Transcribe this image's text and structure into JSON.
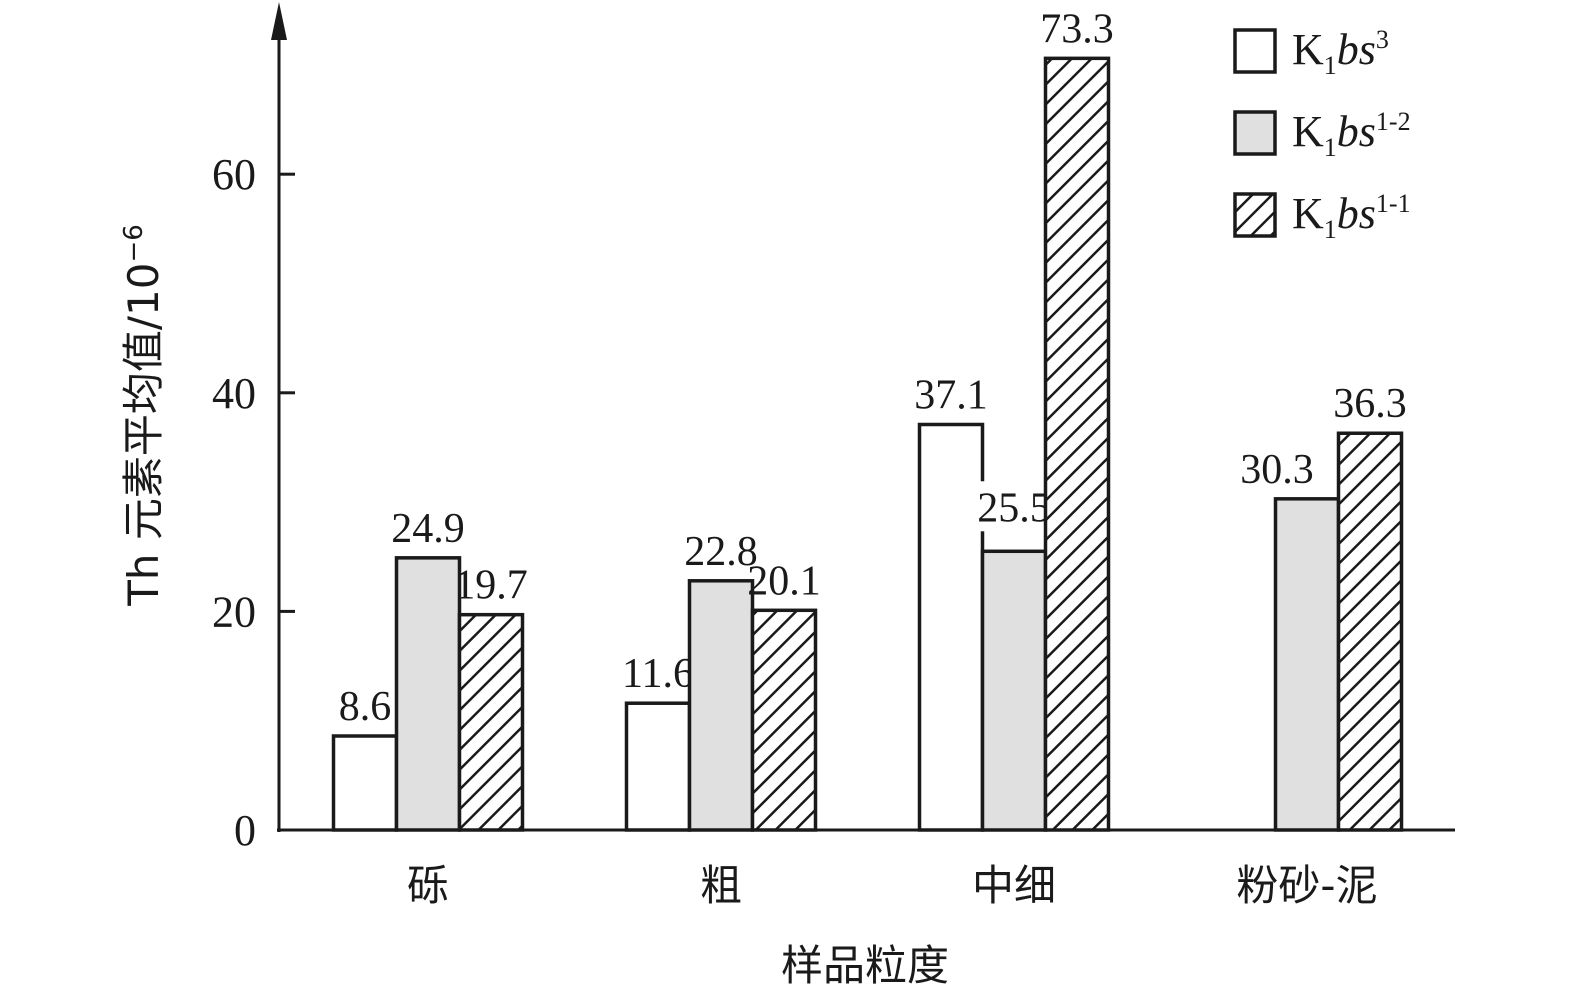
{
  "chart_data": {
    "type": "bar",
    "categories": [
      "砾",
      "粗",
      "中细",
      "粉砂-泥"
    ],
    "series": [
      {
        "legend": {
          "base": "K",
          "sub": "1",
          "ital": "bs",
          "sup": "3"
        },
        "values": [
          8.6,
          11.6,
          37.1,
          null
        ],
        "labels": [
          "8.6",
          "11.6",
          "37.1",
          ""
        ],
        "fill": "#ffffff"
      },
      {
        "legend": {
          "base": "K",
          "sub": "1",
          "ital": "bs",
          "sup": "1-2"
        },
        "values": [
          24.9,
          22.8,
          25.5,
          30.3
        ],
        "labels": [
          "24.9",
          "22.8",
          "25.5",
          "30.3"
        ],
        "fill": "#e0e0e0"
      },
      {
        "legend": {
          "base": "K",
          "sub": "1",
          "ital": "bs",
          "sup": "1-1"
        },
        "values": [
          19.7,
          20.1,
          73.3,
          36.3
        ],
        "labels": [
          "19.7",
          "20.1",
          "73.3",
          "36.3"
        ],
        "fill": "hatch"
      }
    ],
    "yticks": [
      "0",
      "20",
      "40",
      "60"
    ],
    "ylim": [
      0,
      72
    ],
    "xlabel": "样品粒度",
    "ylabel": {
      "main": "Th 元素平均值/10",
      "sup": "−6"
    },
    "legend_position": "top-right",
    "grid": false
  }
}
